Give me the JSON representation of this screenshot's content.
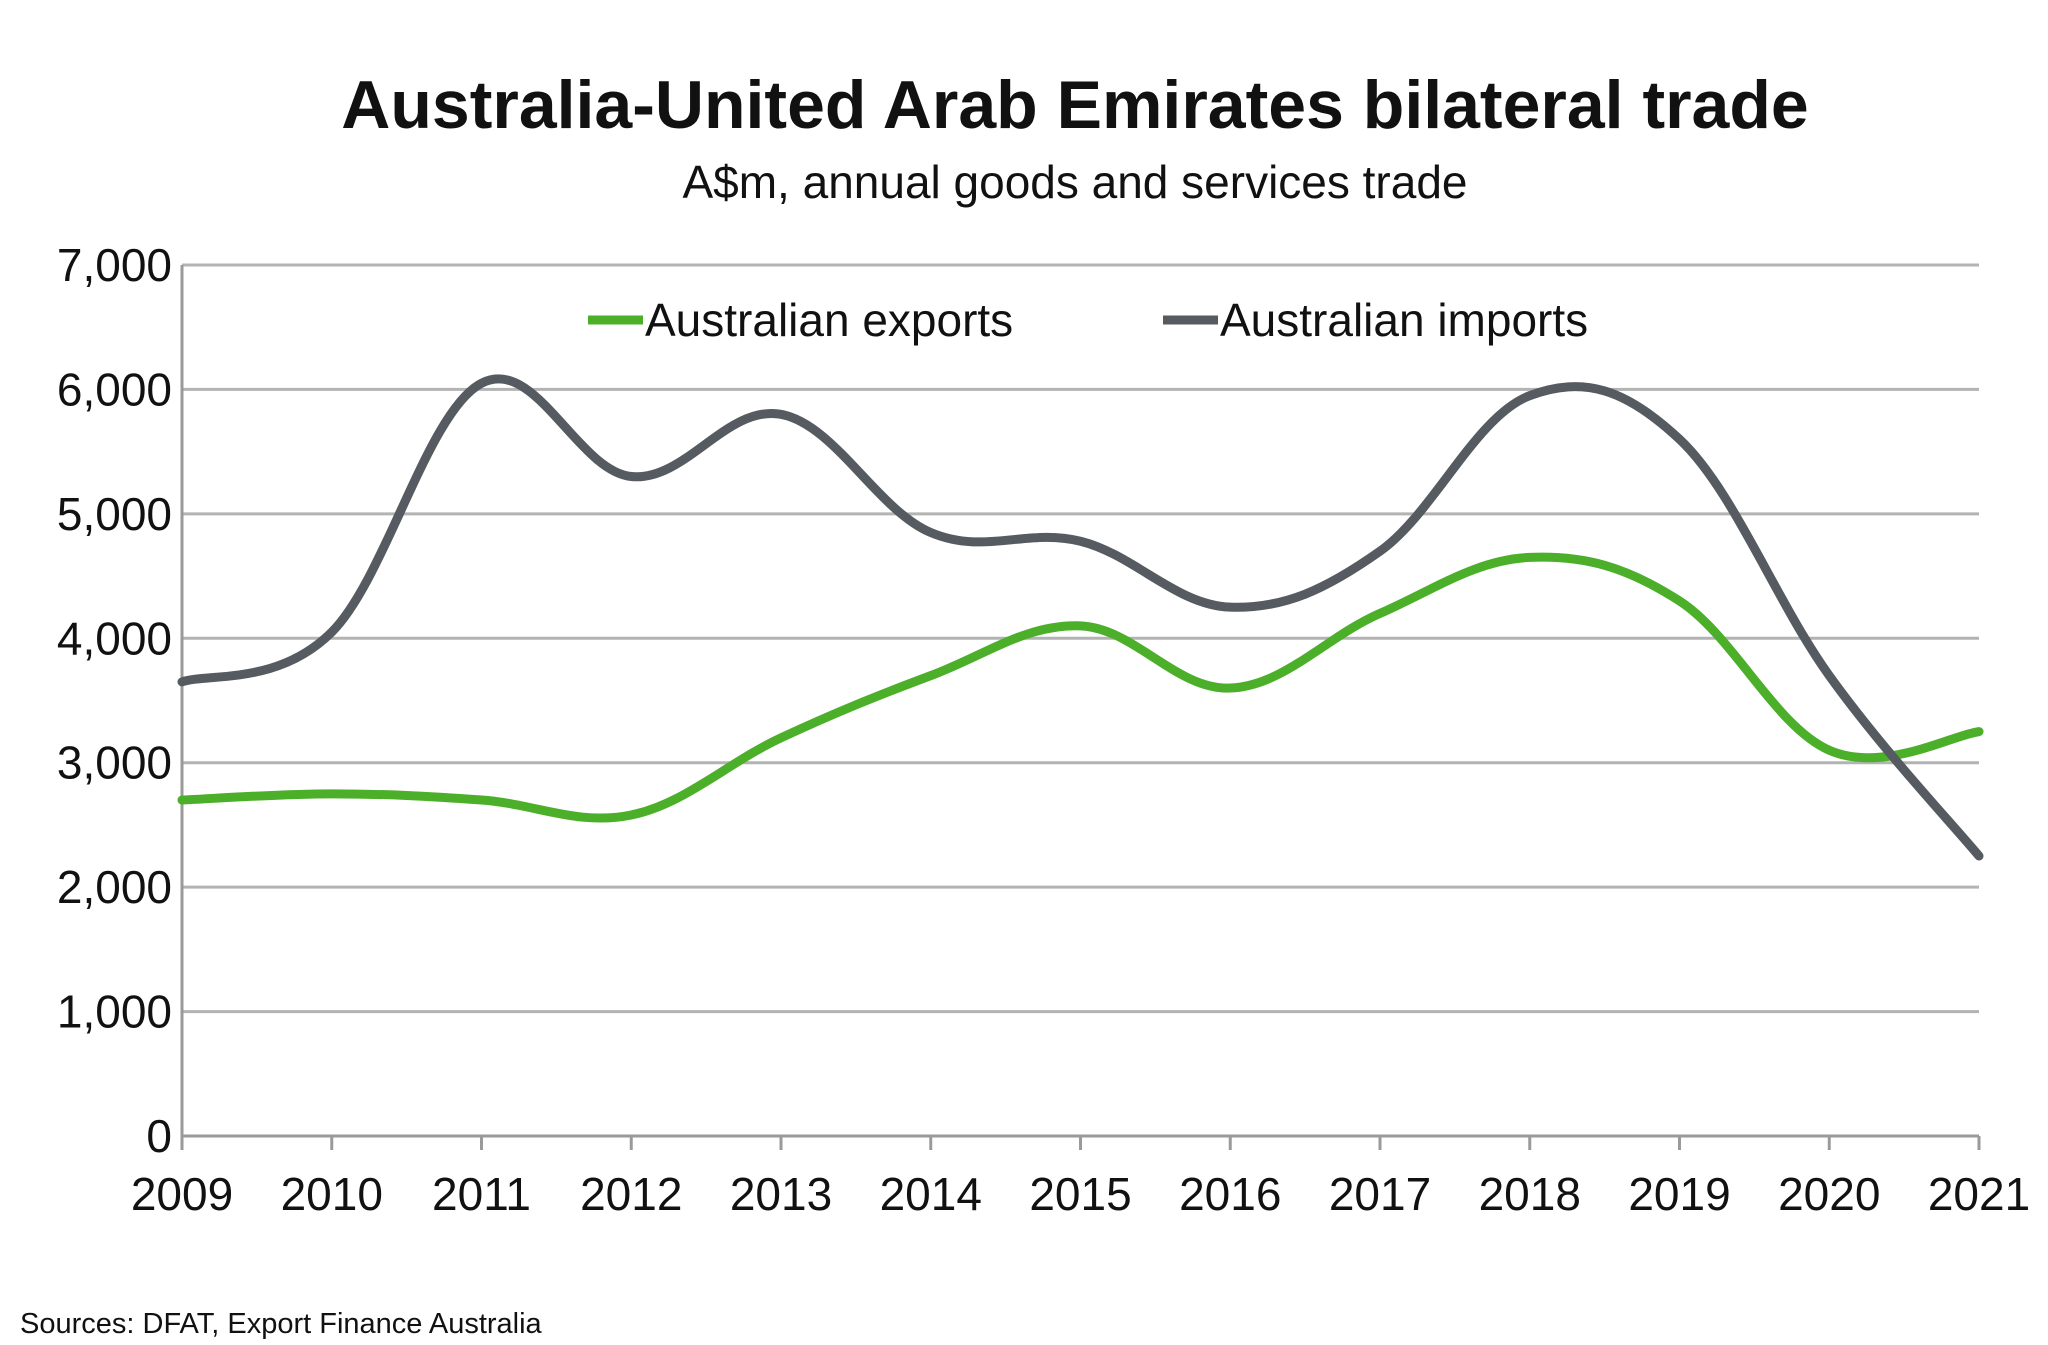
{
  "chart_data": {
    "type": "line",
    "title": "Australia-United Arab Emirates bilateral trade",
    "subtitle": "A$m, annual goods and services trade",
    "x": [
      "2009",
      "2010",
      "2011",
      "2012",
      "2013",
      "2014",
      "2015",
      "2016",
      "2017",
      "2018",
      "2019",
      "2020",
      "2021"
    ],
    "y_ticks": [
      "0",
      "1,000",
      "2,000",
      "3,000",
      "4,000",
      "5,000",
      "6,000",
      "7,000"
    ],
    "ylim": [
      0,
      7000
    ],
    "grid": true,
    "legend_position": "top-center",
    "series": [
      {
        "name": "Australian exports",
        "color": "#4caf2a",
        "values": [
          2700,
          2750,
          2700,
          2580,
          3200,
          3700,
          4100,
          3600,
          4200,
          4650,
          4300,
          3100,
          3250
        ]
      },
      {
        "name": "Australian imports",
        "color": "#555b61",
        "values": [
          3650,
          4050,
          6050,
          5300,
          5800,
          4850,
          4780,
          4250,
          4700,
          5950,
          5600,
          3700,
          2250
        ]
      }
    ],
    "source": "Sources: DFAT, Export Finance Australia"
  }
}
